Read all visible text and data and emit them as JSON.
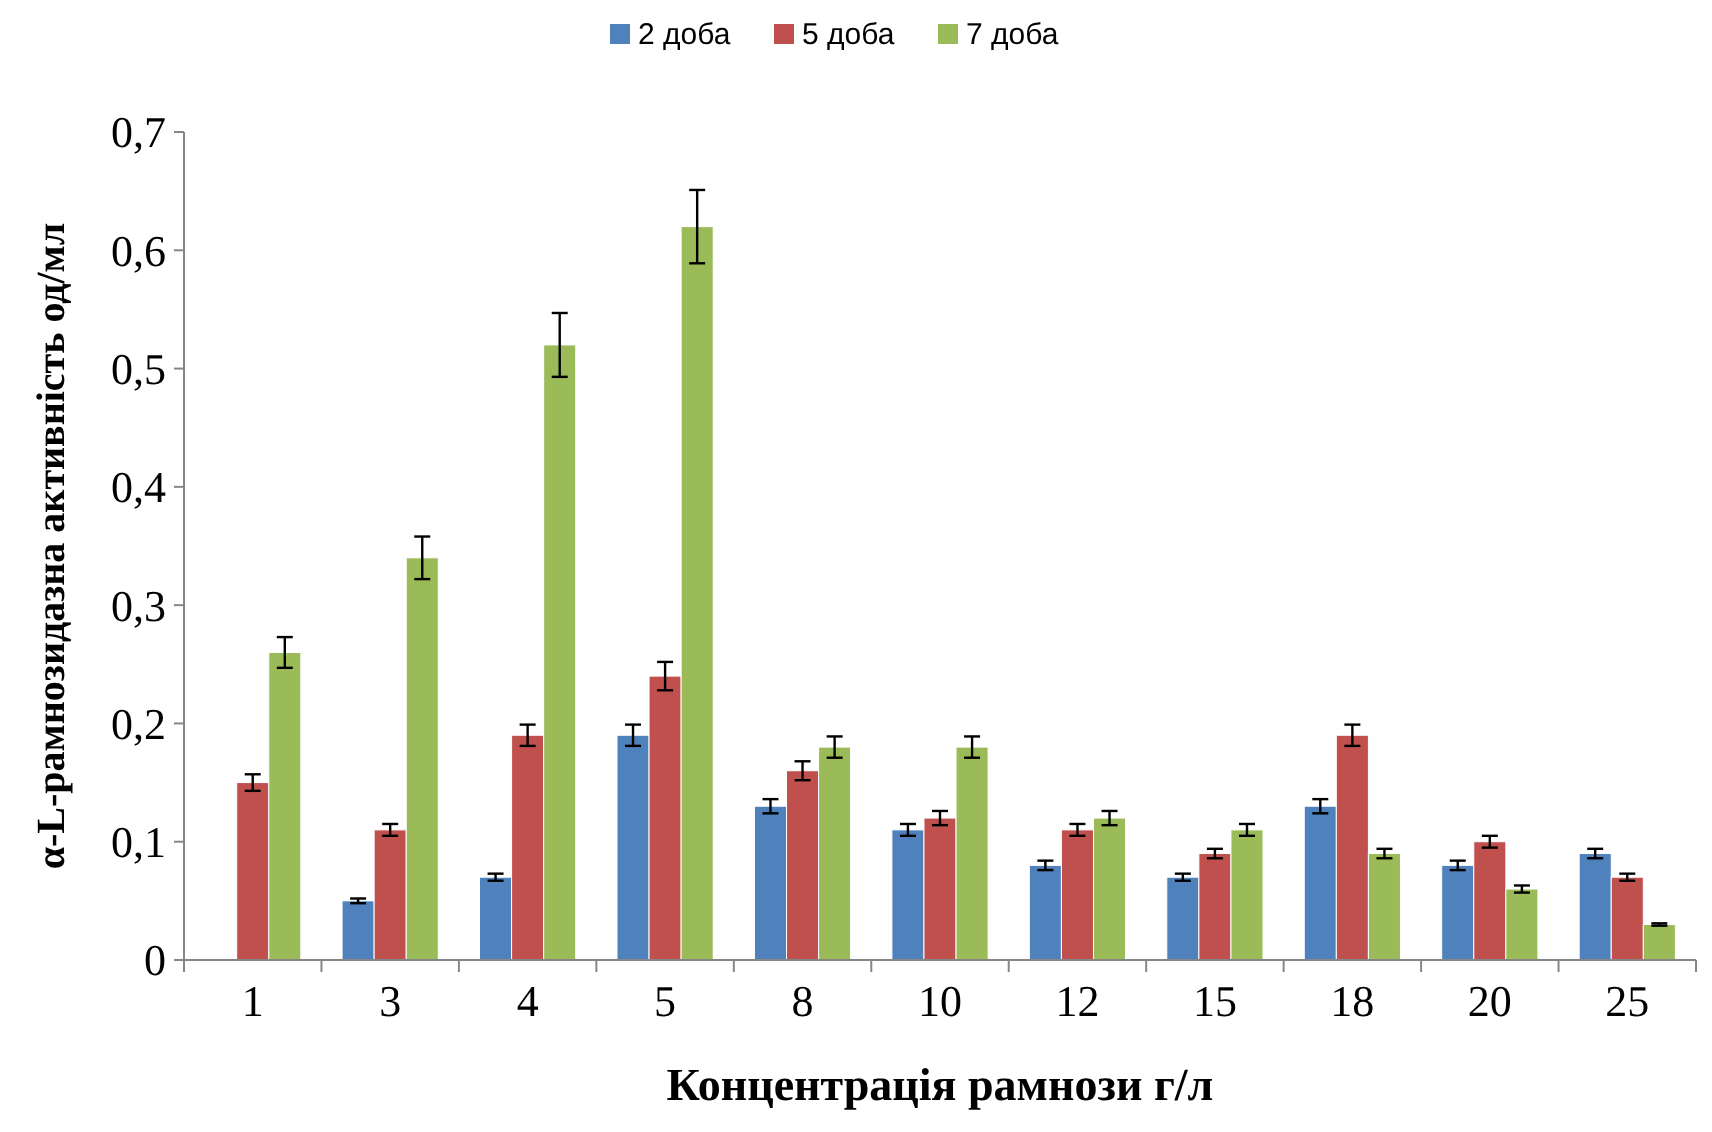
{
  "chart_data": {
    "type": "bar",
    "xlabel": "Концентрація рамнози г/л",
    "ylabel": "α-L-рамнозидазна активність од/мл",
    "categories": [
      "1",
      "3",
      "4",
      "5",
      "8",
      "10",
      "12",
      "15",
      "18",
      "20",
      "25"
    ],
    "series": [
      {
        "name": "2 доба",
        "color": "#4f81bd",
        "values": [
          null,
          0.05,
          0.07,
          0.19,
          0.13,
          0.11,
          0.08,
          0.07,
          0.13,
          0.08,
          0.09
        ],
        "errors": [
          null,
          0.002,
          0.003,
          0.009,
          0.006,
          0.005,
          0.004,
          0.003,
          0.006,
          0.004,
          0.004
        ]
      },
      {
        "name": "5 доба",
        "color": "#c0504d",
        "values": [
          0.15,
          0.11,
          0.19,
          0.24,
          0.16,
          0.12,
          0.11,
          0.09,
          0.19,
          0.1,
          0.07
        ],
        "errors": [
          0.007,
          0.005,
          0.009,
          0.012,
          0.008,
          0.006,
          0.005,
          0.004,
          0.009,
          0.005,
          0.003
        ]
      },
      {
        "name": "7 доба",
        "color": "#9bbb59",
        "values": [
          0.26,
          0.34,
          0.52,
          0.62,
          0.18,
          0.18,
          0.12,
          0.11,
          0.09,
          0.06,
          0.03
        ],
        "errors": [
          0.013,
          0.018,
          0.027,
          0.031,
          0.009,
          0.009,
          0.006,
          0.005,
          0.004,
          0.003,
          0.001
        ]
      }
    ],
    "ylim": [
      0,
      0.7
    ],
    "yticks": [
      0,
      {
        "value": 0.1,
        "label": "0,1"
      },
      {
        "value": 0.2,
        "label": "0,2"
      },
      {
        "value": 0.3,
        "label": "0,3"
      },
      {
        "value": 0.4,
        "label": "0,4"
      },
      {
        "value": 0.5,
        "label": "0,5"
      },
      {
        "value": 0.6,
        "label": "0,6"
      },
      {
        "value": 0.7,
        "label": "0,7"
      }
    ],
    "grid": false,
    "legend": "top"
  }
}
